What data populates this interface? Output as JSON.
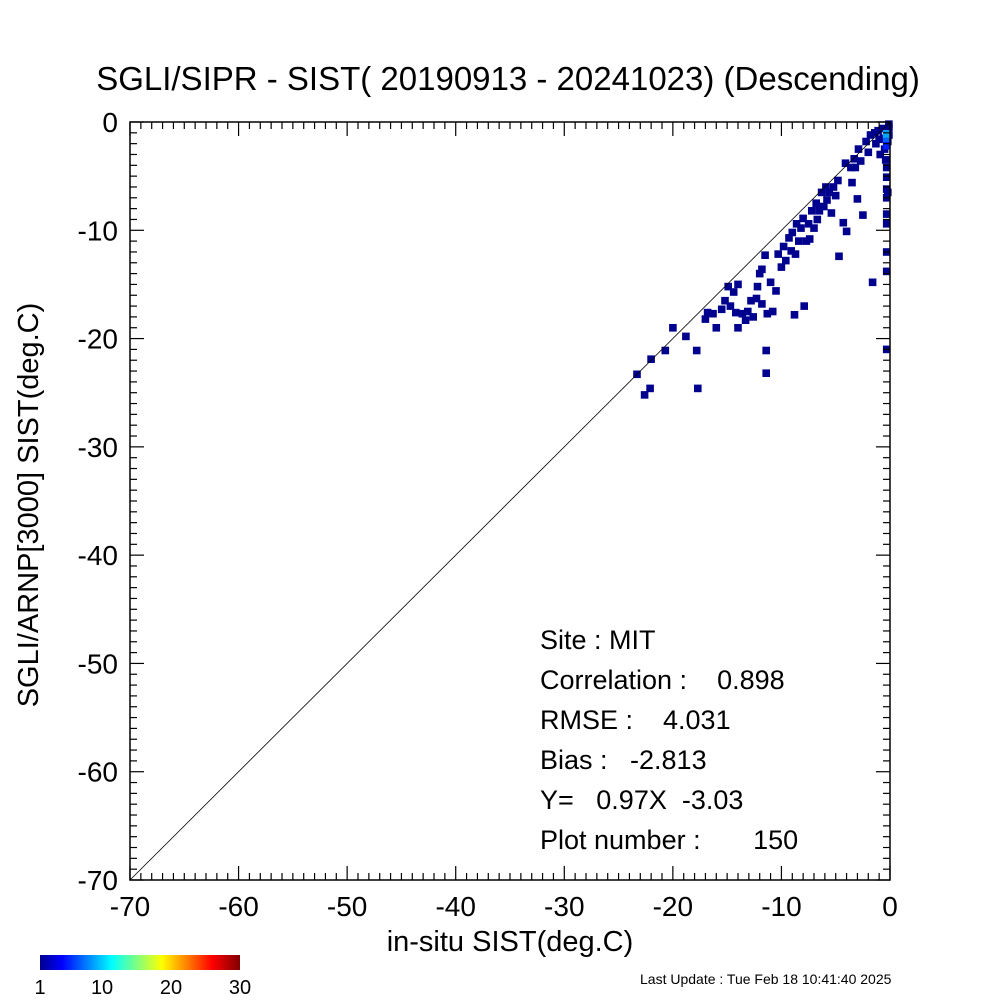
{
  "chart_data": {
    "type": "heatmap",
    "title": "SGLI/SIPR - SIST( 20190913 - 20241023) (Descending)",
    "xlabel": "in-situ SIST(deg.C)",
    "ylabel": "SGLI/ARNP[3000]     SIST(deg.C)",
    "xlim": [
      -70,
      0
    ],
    "ylim": [
      -70,
      0
    ],
    "xticks": [
      -70,
      -60,
      -50,
      -40,
      -30,
      -20,
      -10,
      0
    ],
    "yticks": [
      0,
      -10,
      -20,
      -30,
      -40,
      -50,
      -60,
      -70
    ],
    "xtick_labels": [
      "-70",
      "-60",
      "-50",
      "-40",
      "-30",
      "-20",
      "-10",
      "0"
    ],
    "ytick_labels": [
      "0",
      "-10",
      "-20",
      "-30",
      "-40",
      "-50",
      "-60",
      "-70"
    ],
    "reference_line": "1:1",
    "bin_size": 0.7,
    "points": [
      [
        -23.3,
        -23.3
      ],
      [
        -22.6,
        -25.2
      ],
      [
        -22.1,
        -24.6
      ],
      [
        -22.0,
        -21.9
      ],
      [
        -20.7,
        -21.1
      ],
      [
        -20.0,
        -19.0
      ],
      [
        -18.8,
        -19.8
      ],
      [
        -17.8,
        -21.1
      ],
      [
        -17.7,
        -24.6
      ],
      [
        -17.0,
        -18.2
      ],
      [
        -16.8,
        -17.6
      ],
      [
        -16.3,
        -17.7
      ],
      [
        -16.0,
        -19.0
      ],
      [
        -15.5,
        -17.3
      ],
      [
        -15.2,
        -16.5
      ],
      [
        -14.9,
        -15.2
      ],
      [
        -14.7,
        -17.0
      ],
      [
        -14.4,
        -15.7
      ],
      [
        -14.2,
        -17.6
      ],
      [
        -14.0,
        -19.0
      ],
      [
        -14.0,
        -15.0
      ],
      [
        -13.6,
        -17.7
      ],
      [
        -13.3,
        -18.3
      ],
      [
        -13.1,
        -17.5
      ],
      [
        -12.8,
        -16.5
      ],
      [
        -12.6,
        -18.0
      ],
      [
        -12.3,
        -16.3
      ],
      [
        -12.2,
        -15.2
      ],
      [
        -12.0,
        -14.0
      ],
      [
        -11.8,
        -16.8
      ],
      [
        -11.8,
        -13.6
      ],
      [
        -11.5,
        -12.3
      ],
      [
        -11.4,
        -21.1
      ],
      [
        -11.4,
        -23.2
      ],
      [
        -11.3,
        -17.7
      ],
      [
        -11.0,
        -14.8
      ],
      [
        -10.8,
        -17.5
      ],
      [
        -10.5,
        -15.6
      ],
      [
        -10.3,
        -12.2
      ],
      [
        -10.0,
        -13.4
      ],
      [
        -9.8,
        -11.5
      ],
      [
        -9.6,
        -12.8
      ],
      [
        -9.3,
        -10.7
      ],
      [
        -9.1,
        -11.9
      ],
      [
        -9.0,
        -10.2
      ],
      [
        -8.8,
        -17.8
      ],
      [
        -8.7,
        -12.2
      ],
      [
        -8.6,
        -9.4
      ],
      [
        -8.4,
        -11.0
      ],
      [
        -8.2,
        -9.8
      ],
      [
        -8.0,
        -8.9
      ],
      [
        -7.9,
        -17.0
      ],
      [
        -7.7,
        -11.0
      ],
      [
        -7.5,
        -9.4
      ],
      [
        -7.4,
        -10.8
      ],
      [
        -7.2,
        -8.2
      ],
      [
        -7.0,
        -9.8
      ],
      [
        -6.8,
        -7.5
      ],
      [
        -6.7,
        -9.0
      ],
      [
        -6.5,
        -8.2
      ],
      [
        -6.3,
        -6.5
      ],
      [
        -6.1,
        -7.8
      ],
      [
        -5.9,
        -6.0
      ],
      [
        -5.8,
        -7.2
      ],
      [
        -5.6,
        -6.5
      ],
      [
        -5.4,
        -8.4
      ],
      [
        -5.2,
        -6.0
      ],
      [
        -5.0,
        -6.8
      ],
      [
        -4.8,
        -5.4
      ],
      [
        -4.7,
        -12.4
      ],
      [
        -4.3,
        -9.3
      ],
      [
        -4.1,
        -3.8
      ],
      [
        -4.0,
        -10.1
      ],
      [
        -3.6,
        -4.2
      ],
      [
        -3.5,
        -5.6
      ],
      [
        -3.3,
        -3.4
      ],
      [
        -3.2,
        -4.2
      ],
      [
        -3.0,
        -7.1
      ],
      [
        -2.9,
        -2.5
      ],
      [
        -2.7,
        -3.6
      ],
      [
        -2.5,
        -8.6
      ],
      [
        -2.2,
        -1.8
      ],
      [
        -2.0,
        -2.8
      ],
      [
        -1.8,
        -1.2
      ],
      [
        -1.6,
        -14.8
      ],
      [
        -1.4,
        -1.0
      ],
      [
        -1.3,
        -2.0
      ],
      [
        -1.1,
        -0.8
      ],
      [
        -1.0,
        -1.6
      ],
      [
        -0.9,
        -3.0
      ],
      [
        -0.7,
        -0.6
      ],
      [
        -0.6,
        -1.5
      ],
      [
        -0.5,
        -2.5
      ],
      [
        -0.4,
        -3.5
      ],
      [
        -0.3,
        -4.2
      ],
      [
        -0.3,
        -5.1
      ],
      [
        -0.3,
        -6.2
      ],
      [
        -0.3,
        -7.0
      ],
      [
        -0.3,
        -8.5
      ],
      [
        -0.3,
        -9.4
      ],
      [
        -0.3,
        -12.0
      ],
      [
        -0.3,
        -13.8
      ],
      [
        -0.3,
        -21.0
      ],
      [
        -0.2,
        -0.9
      ],
      [
        -0.2,
        -1.8
      ],
      [
        -0.2,
        -6.5
      ],
      [
        -0.1,
        -0.2
      ],
      [
        -0.1,
        -1.2
      ],
      [
        -0.1,
        -0.5
      ]
    ],
    "hot_bins": [
      {
        "x": -0.3,
        "y": -1.6,
        "count": 7
      },
      {
        "x": -0.3,
        "y": -1.1,
        "count": 9
      },
      {
        "x": -0.3,
        "y": -2.2,
        "count": 5
      }
    ],
    "colorbar": {
      "min": 1,
      "max": 30,
      "tick_values": [
        1,
        10,
        20,
        30
      ],
      "tick_labels": [
        "1",
        "10",
        "20",
        "30"
      ]
    },
    "stats": {
      "site": "Site : MIT",
      "correlation": "Correlation :    0.898",
      "rmse": "RMSE :    4.031",
      "bias": "Bias :   -2.813",
      "regression": "Y=   0.97X  -3.03",
      "plot_number": "Plot number :       150"
    },
    "colors": {
      "low": "#00008f",
      "mid": "#00ffff",
      "high": "#800000"
    }
  },
  "footer": {
    "last_update": "Last Update : Tue Feb 18 10:41:40 2025"
  }
}
